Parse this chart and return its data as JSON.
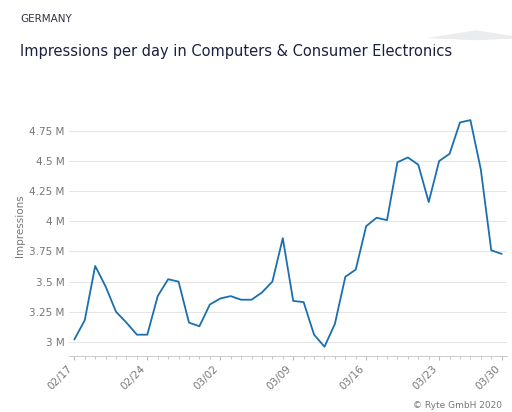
{
  "title_top": "GERMANY",
  "title_main": "Impressions per day in Computers & Consumer Electronics",
  "ylabel": "Impressions",
  "footer": "© Ryte GmbH 2020",
  "line_color": "#1a6faf",
  "background_header": "#e2e4e8",
  "background_plot": "#ffffff",
  "ylim": [
    2880000,
    5050000
  ],
  "yticks": [
    3000000,
    3250000,
    3500000,
    3750000,
    4000000,
    4250000,
    4500000,
    4750000
  ],
  "ytick_labels": [
    "3 M",
    "3.25 M",
    "3.5 M",
    "3.75 M",
    "4 M",
    "4.25 M",
    "4.5 M",
    "4.75 M"
  ],
  "x_labels": [
    "02/17",
    "02/24",
    "03/02",
    "03/09",
    "03/16",
    "03/23",
    "03/30"
  ],
  "x_tick_positions": [
    0,
    7,
    14,
    21,
    28,
    35,
    41
  ],
  "values": [
    3020000,
    3180000,
    3630000,
    3460000,
    3250000,
    3160000,
    3060000,
    3060000,
    3380000,
    3520000,
    3500000,
    3160000,
    3130000,
    3310000,
    3360000,
    3380000,
    3350000,
    3350000,
    3410000,
    3500000,
    3860000,
    3340000,
    3330000,
    3060000,
    2960000,
    3150000,
    3540000,
    3600000,
    3960000,
    4030000,
    4010000,
    4490000,
    4530000,
    4470000,
    4160000,
    4500000,
    4560000,
    4820000,
    4840000,
    4430000,
    3760000,
    3730000
  ]
}
